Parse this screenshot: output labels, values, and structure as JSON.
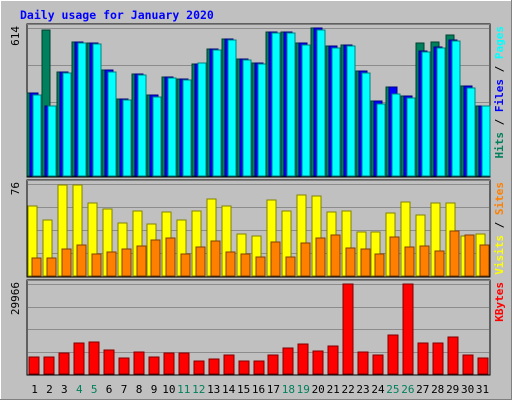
{
  "chart_data": {
    "type": "bar",
    "title": "Daily usage for January 2020",
    "categories": [
      "1",
      "2",
      "3",
      "4",
      "5",
      "6",
      "7",
      "8",
      "9",
      "10",
      "11",
      "12",
      "13",
      "14",
      "15",
      "16",
      "17",
      "18",
      "19",
      "20",
      "21",
      "22",
      "23",
      "24",
      "25",
      "26",
      "27",
      "28",
      "29",
      "30",
      "31"
    ],
    "weekend_days": [
      "4",
      "5",
      "11",
      "12",
      "18",
      "19",
      "25",
      "26"
    ],
    "panels": [
      {
        "id": "top",
        "ymax": 614,
        "ymax_label": "614",
        "side_label": [
          "Hits",
          "Files",
          "Pages"
        ],
        "series": [
          {
            "name": "Hits",
            "color": "#00805c",
            "values": [
              345,
              605,
              432,
              555,
              550,
              439,
              320,
              424,
              338,
              411,
              403,
              465,
              525,
              568,
              485,
              470,
              598,
              596,
              550,
              612,
              538,
              543,
              435,
              312,
              370,
              330,
              552,
              555,
              583,
              372,
              292
            ]
          },
          {
            "name": "Files",
            "color": "#0000ff",
            "values": [
              345,
              292,
              432,
              555,
              550,
              439,
              320,
              424,
              338,
              411,
              403,
              465,
              525,
              568,
              485,
              470,
              598,
              596,
              550,
              612,
              538,
              543,
              435,
              312,
              370,
              330,
              520,
              535,
              565,
              372,
              292
            ]
          },
          {
            "name": "Pages",
            "color": "#00ffff",
            "values": [
              335,
              292,
              428,
              550,
              547,
              432,
              315,
              420,
              328,
              408,
              398,
              468,
              522,
              563,
              480,
              464,
              593,
              593,
              545,
              605,
              532,
              538,
              428,
              300,
              340,
              322,
              515,
              530,
              560,
              365,
              290
            ]
          }
        ]
      },
      {
        "id": "middle",
        "ymax": 76,
        "ymax_label": "76",
        "side_label": [
          "Visits",
          "Sites"
        ],
        "series": [
          {
            "name": "Visits",
            "color": "#ffff00",
            "values": [
              58,
              46,
              75,
              75,
              60,
              55,
              44,
              54,
              43,
              53,
              46,
              54,
              64,
              58,
              35,
              33,
              63,
              54,
              67,
              66,
              53,
              54,
              36,
              36,
              52,
              61,
              50,
              60,
              60,
              33,
              35
            ]
          },
          {
            "name": "Sites",
            "color": "#ff8000",
            "values": [
              15,
              15,
              22,
              26,
              18,
              20,
              22,
              25,
              30,
              31,
              18,
              24,
              29,
              20,
              18,
              16,
              28,
              16,
              27,
              31,
              34,
              23,
              22,
              18,
              32,
              24,
              25,
              21,
              37,
              34,
              26
            ]
          }
        ]
      },
      {
        "id": "bottom",
        "ymax": 29966,
        "ymax_label": "29966",
        "side_label": [
          "KBytes"
        ],
        "series": [
          {
            "name": "KBytes",
            "color": "#ff0000",
            "values": [
              5800,
              5700,
              7000,
              10300,
              10500,
              8100,
              5300,
              7300,
              5800,
              6900,
              6900,
              4400,
              5100,
              6200,
              4300,
              4300,
              6200,
              8700,
              10100,
              7600,
              9300,
              29966,
              7400,
              6400,
              13000,
              29966,
              10300,
              10300,
              12200,
              6300,
              5400
            ]
          }
        ]
      }
    ]
  }
}
